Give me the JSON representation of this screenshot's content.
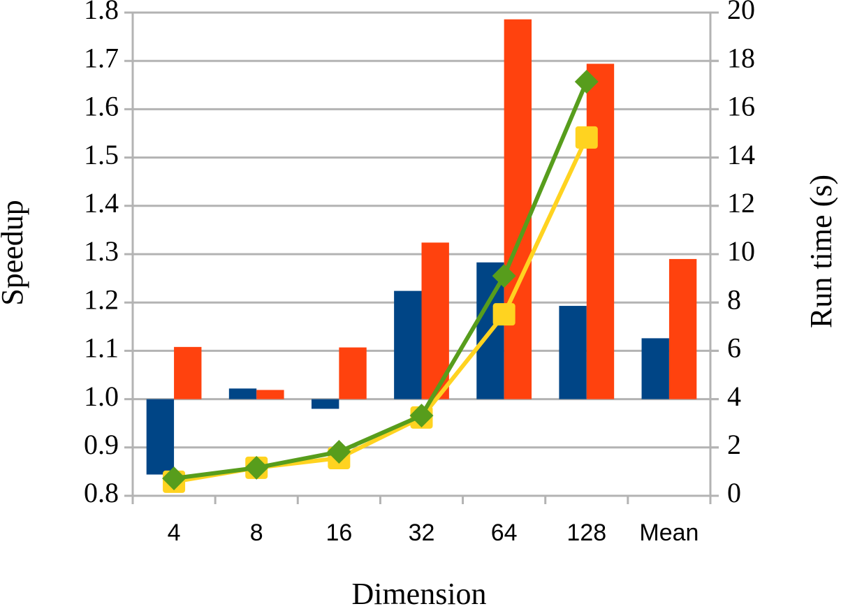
{
  "chart_data": {
    "type": "bar",
    "categories": [
      "4",
      "8",
      "16",
      "32",
      "64",
      "128",
      "Mean"
    ],
    "xlabel": "Dimension",
    "ylabel": "Speedup",
    "y2label": "Run time (s)",
    "ylim": [
      0.8,
      1.8
    ],
    "yticks": [
      0.8,
      0.9,
      {
        "value": 1,
        "label": "1.0"
      },
      1.1,
      1.2,
      1.3,
      1.4,
      1.5,
      1.6,
      1.7,
      1.8
    ],
    "y2lim": [
      0,
      20
    ],
    "y2ticks": [
      0,
      2,
      4,
      6,
      8,
      10,
      12,
      14,
      16,
      18,
      20
    ],
    "bar_base": 1,
    "grid": true,
    "series": [
      {
        "type": "bar",
        "color": "#004586",
        "values": [
          0.844,
          1.022,
          0.98,
          1.224,
          1.283,
          1.193,
          1.126
        ]
      },
      {
        "type": "bar",
        "color": "#ff420e",
        "values": [
          1.108,
          1.019,
          1.107,
          1.324,
          1.786,
          1.694,
          1.29
        ]
      },
      {
        "type": "line",
        "axis": "y2",
        "marker": "square",
        "color": "#ffd320",
        "values": [
          0.58,
          1.16,
          1.56,
          3.24,
          7.51,
          14.83,
          null
        ]
      },
      {
        "type": "line",
        "axis": "y2",
        "marker": "diamond",
        "color": "#579d1c",
        "values": [
          0.72,
          1.16,
          1.82,
          3.32,
          9.1,
          17.14,
          null
        ]
      }
    ]
  }
}
